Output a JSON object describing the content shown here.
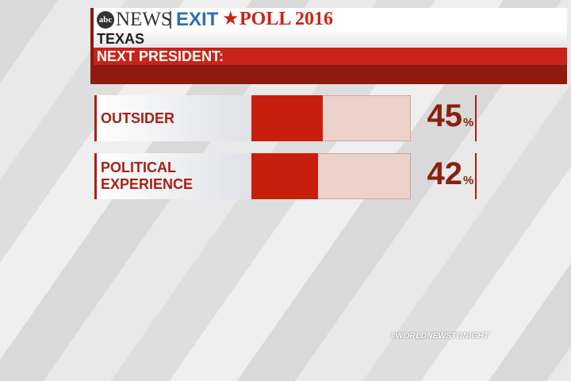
{
  "chart_data": {
    "type": "hbar",
    "logo": "abc",
    "network": "NEWS",
    "title_parts": [
      "EXIT",
      "POLL 2016"
    ],
    "subtitle": "TEXAS",
    "question": "NEXT PRESIDENT:",
    "categories": [
      "OUTSIDER",
      "POLITICAL EXPERIENCE"
    ],
    "values": [
      45,
      42
    ],
    "value_suffix": "%",
    "xlim": [
      0,
      100
    ],
    "color": "#c81e0e",
    "track_color": "#ecd2ca",
    "hashtag": "#WORLDNEWSTONIGHT"
  }
}
